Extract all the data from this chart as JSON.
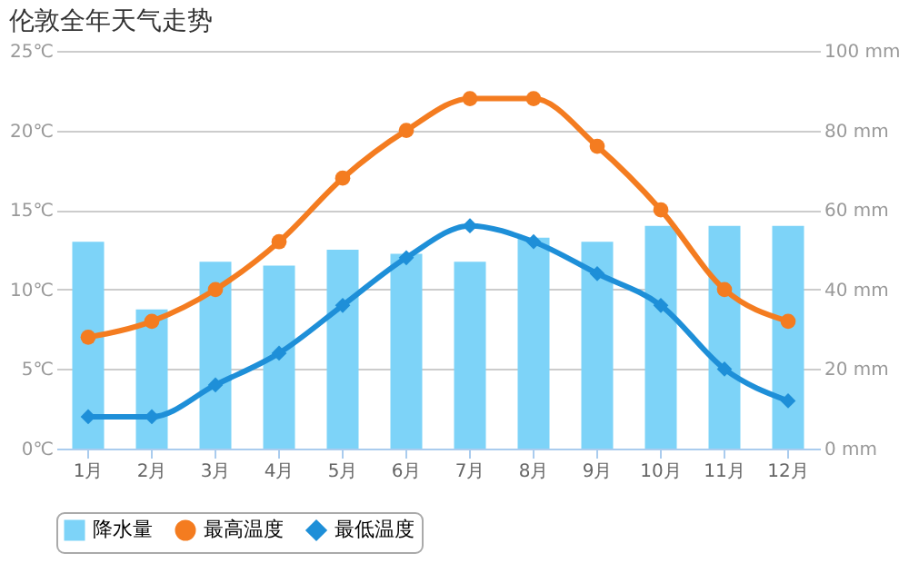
{
  "chart_data": {
    "type": "bar",
    "title": "伦敦全年天气走势",
    "categories": [
      "1月",
      "2月",
      "3月",
      "4月",
      "5月",
      "6月",
      "7月",
      "8月",
      "9月",
      "10月",
      "11月",
      "12月"
    ],
    "series": [
      {
        "name": "降水量",
        "axis": "y2",
        "color": "#7dd3f8",
        "values": [
          52,
          35,
          47,
          46,
          50,
          49,
          47,
          53,
          52,
          56,
          56,
          56
        ]
      },
      {
        "name": "最高温度",
        "type": "line",
        "color": "#f47c20",
        "marker": "circle",
        "values": [
          7,
          8,
          10,
          13,
          17,
          20,
          22,
          22,
          19,
          15,
          10,
          8
        ]
      },
      {
        "name": "最低温度",
        "type": "line",
        "color": "#1e8fd8",
        "marker": "diamond",
        "values": [
          2,
          2,
          4,
          6,
          9,
          12,
          14,
          13,
          11,
          9,
          5,
          3
        ]
      }
    ],
    "ylim": [
      0,
      25
    ],
    "yticks": [
      {
        "value": 0,
        "label": "0℃"
      },
      {
        "value": 5,
        "label": "5℃"
      },
      {
        "value": 10,
        "label": "10℃"
      },
      {
        "value": 15,
        "label": "15℃"
      },
      {
        "value": 20,
        "label": "20℃"
      },
      {
        "value": 25,
        "label": "25℃"
      }
    ],
    "y2lim": [
      0,
      100
    ],
    "y2ticks": [
      {
        "value": 0,
        "label": "0 mm"
      },
      {
        "value": 20,
        "label": "20 mm"
      },
      {
        "value": 40,
        "label": "40 mm"
      },
      {
        "value": 60,
        "label": "60 mm"
      },
      {
        "value": 80,
        "label": "80 mm"
      },
      {
        "value": 100,
        "label": "100 mm"
      }
    ],
    "grid": "y",
    "legend": "bottom",
    "line_style": "solid"
  }
}
